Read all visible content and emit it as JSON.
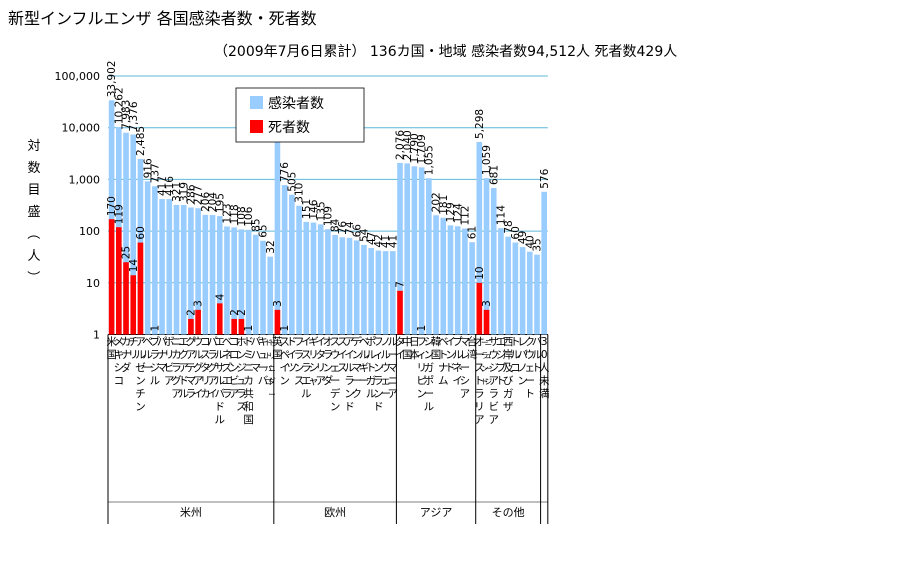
{
  "chart_data": {
    "type": "bar",
    "title": "新型インフルエンザ 各国感染者数・死者数",
    "subtitle": "（2009年7月6日累計） 136カ国・地域 感染者数94,512人 死者数429人",
    "ylabel": "対数目盛（人）",
    "yscale": "log",
    "ylim": [
      1,
      100000
    ],
    "yticks": [
      "1",
      "10",
      "100",
      "1,000",
      "10,000",
      "100,000"
    ],
    "grid": true,
    "legend_position": "top-left",
    "colors": {
      "infected": "#99ccff",
      "deaths": "#ff0000",
      "grid": "#5fb8d8"
    },
    "series": [
      {
        "name": "感染者数",
        "values": [
          33902,
          10262,
          7983,
          7376,
          2485,
          916,
          737,
          417,
          416,
          321,
          319,
          286,
          277,
          206,
          204,
          195,
          123,
          118,
          108,
          106,
          85,
          65,
          32,
          7447,
          776,
          505,
          310,
          151,
          146,
          135,
          109,
          84,
          76,
          74,
          66,
          54,
          47,
          42,
          41,
          41,
          2076,
          2040,
          1790,
          1709,
          1055,
          202,
          181,
          129,
          124,
          112,
          61,
          5298,
          1059,
          681,
          114,
          78,
          60,
          49,
          40,
          35,
          576
        ]
      },
      {
        "name": "死者数",
        "values": [
          170,
          119,
          25,
          14,
          60,
          0,
          1,
          0,
          0,
          0,
          0,
          2,
          3,
          0,
          0,
          4,
          0,
          2,
          2,
          1,
          0,
          0,
          0,
          3,
          1,
          0,
          0,
          0,
          0,
          0,
          0,
          0,
          0,
          0,
          0,
          0,
          0,
          0,
          0,
          0,
          7,
          0,
          0,
          1,
          0,
          0,
          0,
          0,
          0,
          0,
          0,
          10,
          3,
          0,
          0,
          0,
          0,
          0,
          0,
          0,
          0
        ]
      }
    ],
    "infected_labels": [
      "33,902",
      "10,262",
      "7,983",
      "7,376",
      "2,485",
      "916",
      "737",
      "417",
      "416",
      "321",
      "319",
      "286",
      "277",
      "206",
      "204",
      "195",
      "123",
      "118",
      "108",
      "106",
      "85",
      "65",
      "32",
      "7,447",
      "776",
      "505",
      "310",
      "151",
      "146",
      "135",
      "109",
      "84",
      "76",
      "74",
      "66",
      "54",
      "47",
      "42",
      "41",
      "41",
      "2,076",
      "2,040",
      "1,790",
      "1,709",
      "1,055",
      "202",
      "181",
      "129",
      "124",
      "112",
      "61",
      "5,298",
      "1,059",
      "681",
      "114",
      "78",
      "60",
      "49",
      "40",
      "35",
      "576"
    ],
    "categories": [
      "米国",
      "メキシコ",
      "カナダ",
      "チリ",
      "アルゼンチン",
      "ペルー",
      "ブラジル",
      "パナマ",
      "ボリビア",
      "ニカラグア",
      "エクアドル",
      "グアテマラ",
      "ウルグアイ",
      "コスタリカ",
      "パラグアイ",
      "エルサルバドル",
      "ベネズエラ",
      "コロンビア",
      "ホンジュラス",
      "ドミニカ共和国",
      "バハマ",
      "キューバ",
      "トリニダードトバゴ",
      "英国",
      "スペイン",
      "ドイツ",
      "フランス",
      "イスラエル",
      "ギリシャ",
      "イタリア",
      "オランダ",
      "スウェーデン",
      "スイス",
      "アイルランド",
      "デンマーク",
      "ベルギー",
      "ポルトガル",
      "フィンランド",
      "ノルウェー",
      "ルーマニア",
      "タイ",
      "中国",
      "日本",
      "フィリピン",
      "シンガポール",
      "韓国",
      "ベトナム",
      "インド",
      "ブルネイ",
      "マレーシア",
      "台湾",
      "オーストラリア",
      "ニュージーランド",
      "サウジアラビア",
      "エジプト",
      "西岸及びガザ",
      "トルコ",
      "レバノン",
      "クウェート",
      "バルト",
      "30人未満"
    ],
    "group_labels": [
      "米州",
      "欧州",
      "アジア",
      "その他"
    ]
  }
}
